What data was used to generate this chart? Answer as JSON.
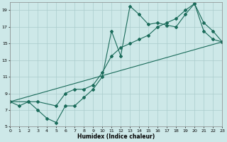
{
  "xlabel": "Humidex (Indice chaleur)",
  "bg_color": "#cde8e8",
  "line_color": "#1a6b5a",
  "grid_color": "#aacccc",
  "ylim": [
    5,
    20
  ],
  "xlim": [
    0,
    23
  ],
  "yticks": [
    5,
    7,
    9,
    11,
    13,
    15,
    17,
    19
  ],
  "xticks": [
    0,
    1,
    2,
    3,
    4,
    5,
    6,
    7,
    8,
    9,
    10,
    11,
    12,
    13,
    14,
    15,
    16,
    17,
    18,
    19,
    20,
    21,
    22,
    23
  ],
  "line1_x": [
    0,
    1,
    2,
    3,
    4,
    5,
    6,
    7,
    8,
    9,
    10,
    11,
    12,
    13,
    14,
    15,
    16,
    17,
    18,
    19,
    20,
    21,
    22,
    23
  ],
  "line1_y": [
    8,
    7.5,
    8,
    7,
    6,
    5.5,
    7.5,
    7.5,
    8.5,
    9.5,
    11,
    16.5,
    13.5,
    19.5,
    18.5,
    17.3,
    17.5,
    17.2,
    17,
    18.5,
    19.8,
    17.5,
    16.5,
    15.2
  ],
  "line2_x": [
    0,
    2,
    3,
    5,
    6,
    7,
    8,
    9,
    10,
    11,
    12,
    13,
    14,
    15,
    16,
    17,
    18,
    19,
    20,
    21,
    22,
    23
  ],
  "line2_y": [
    8,
    8,
    8,
    7.5,
    9,
    9.5,
    9.5,
    10,
    11.5,
    13.5,
    14.5,
    15,
    15.5,
    16,
    17,
    17.5,
    18,
    19,
    19.8,
    16.5,
    15.5,
    15.2
  ],
  "line3_x": [
    0,
    23
  ],
  "line3_y": [
    8,
    15.2
  ]
}
